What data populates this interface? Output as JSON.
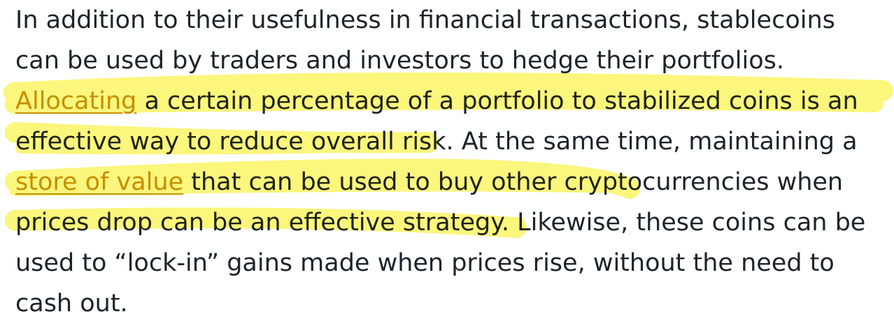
{
  "article": {
    "lines": [
      "In addition to their usefulness in financial transactions, stablecoins",
      "can be used by traders and investors to hedge their portfolios.",
      "",
      "effective way to reduce overall risk. At the same time, maintaining a",
      "",
      "prices drop can be an effective strategy. Likewise, these coins can be",
      "used to “lock-in” gains made when prices rise, without the need to",
      "cash out."
    ],
    "link_allocating": "Allocating",
    "line3_rest": " a certain percentage of a portfolio to stabilized coins is an",
    "link_store_of_value": "store of value",
    "line5_rest": " that can be used to buy other cryptocurrencies when"
  },
  "colors": {
    "text": "#1e2329",
    "link": "#c99400",
    "highlight": "#fbf565"
  }
}
